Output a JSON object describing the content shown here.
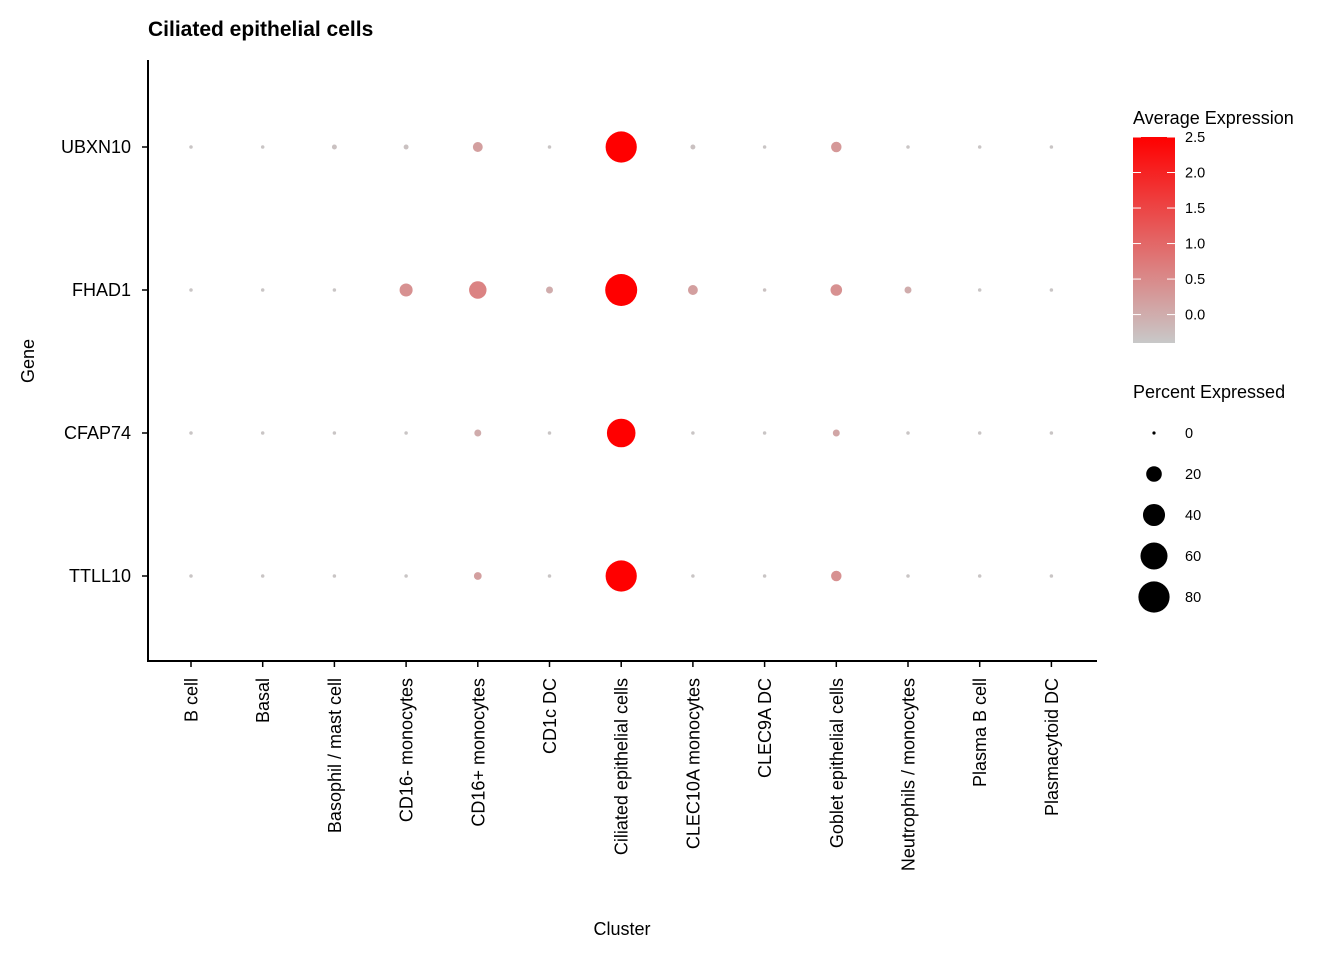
{
  "chart_data": {
    "type": "dot",
    "title": "Ciliated epithelial cells",
    "xlabel": "Cluster",
    "ylabel": "Gene",
    "categories": [
      "B cell",
      "Basal",
      "Basophil / mast cell",
      "CD16- monocytes",
      "CD16+ monocytes",
      "CD1c DC",
      "Ciliated epithelial cells",
      "CLEC10A monocytes",
      "CLEC9A DC",
      "Goblet epithelial cells",
      "Neutrophils / monocytes",
      "Plasma B cell",
      "Plasmacytoid DC"
    ],
    "genes": [
      "UBXN10",
      "FHAD1",
      "CFAP74",
      "TTLL10"
    ],
    "series": [
      {
        "name": "UBXN10",
        "avg_expression": [
          -0.35,
          -0.35,
          -0.3,
          -0.3,
          0.2,
          -0.35,
          2.5,
          -0.3,
          -0.35,
          0.3,
          -0.35,
          -0.35,
          -0.35
        ],
        "pct_expressed": [
          1,
          1,
          2,
          2,
          8,
          1,
          80,
          2,
          1,
          9,
          1,
          1,
          1
        ]
      },
      {
        "name": "FHAD1",
        "avg_expression": [
          -0.35,
          -0.35,
          -0.35,
          0.4,
          0.6,
          0.0,
          2.5,
          0.2,
          -0.3,
          0.4,
          0.0,
          -0.35,
          -0.35
        ],
        "pct_expressed": [
          1,
          1,
          1,
          14,
          25,
          4,
          84,
          8,
          1,
          11,
          4,
          1,
          1
        ]
      },
      {
        "name": "CFAP74",
        "avg_expression": [
          -0.35,
          -0.35,
          -0.35,
          -0.35,
          0.0,
          -0.35,
          2.5,
          -0.35,
          -0.35,
          0.1,
          -0.35,
          -0.35,
          -0.35
        ],
        "pct_expressed": [
          1,
          1,
          1,
          1,
          4,
          1,
          67,
          1,
          1,
          4,
          1,
          1,
          1
        ]
      },
      {
        "name": "TTLL10",
        "avg_expression": [
          -0.35,
          -0.35,
          -0.35,
          -0.35,
          0.2,
          -0.35,
          2.5,
          -0.35,
          -0.35,
          0.4,
          -0.35,
          -0.35,
          -0.35
        ],
        "pct_expressed": [
          1,
          1,
          1,
          1,
          5,
          1,
          80,
          1,
          1,
          9,
          1,
          1,
          1
        ]
      }
    ],
    "color_scale": {
      "title": "Average Expression",
      "ticks": [
        2.5,
        2.0,
        1.5,
        1.0,
        0.5,
        0.0
      ],
      "tick_labels": [
        "2.5",
        "2.0",
        "1.5",
        "1.0",
        "0.5",
        "0.0"
      ],
      "domain": [
        -0.4,
        2.5
      ],
      "low_color": "#c8c8c8",
      "high_color": "#ff0000"
    },
    "size_scale": {
      "title": "Percent Expressed",
      "values": [
        0,
        20,
        40,
        60,
        80
      ],
      "labels": [
        "0",
        "20",
        "40",
        "60",
        "80"
      ],
      "max": 84
    },
    "legend_position": "right",
    "grid": false
  }
}
